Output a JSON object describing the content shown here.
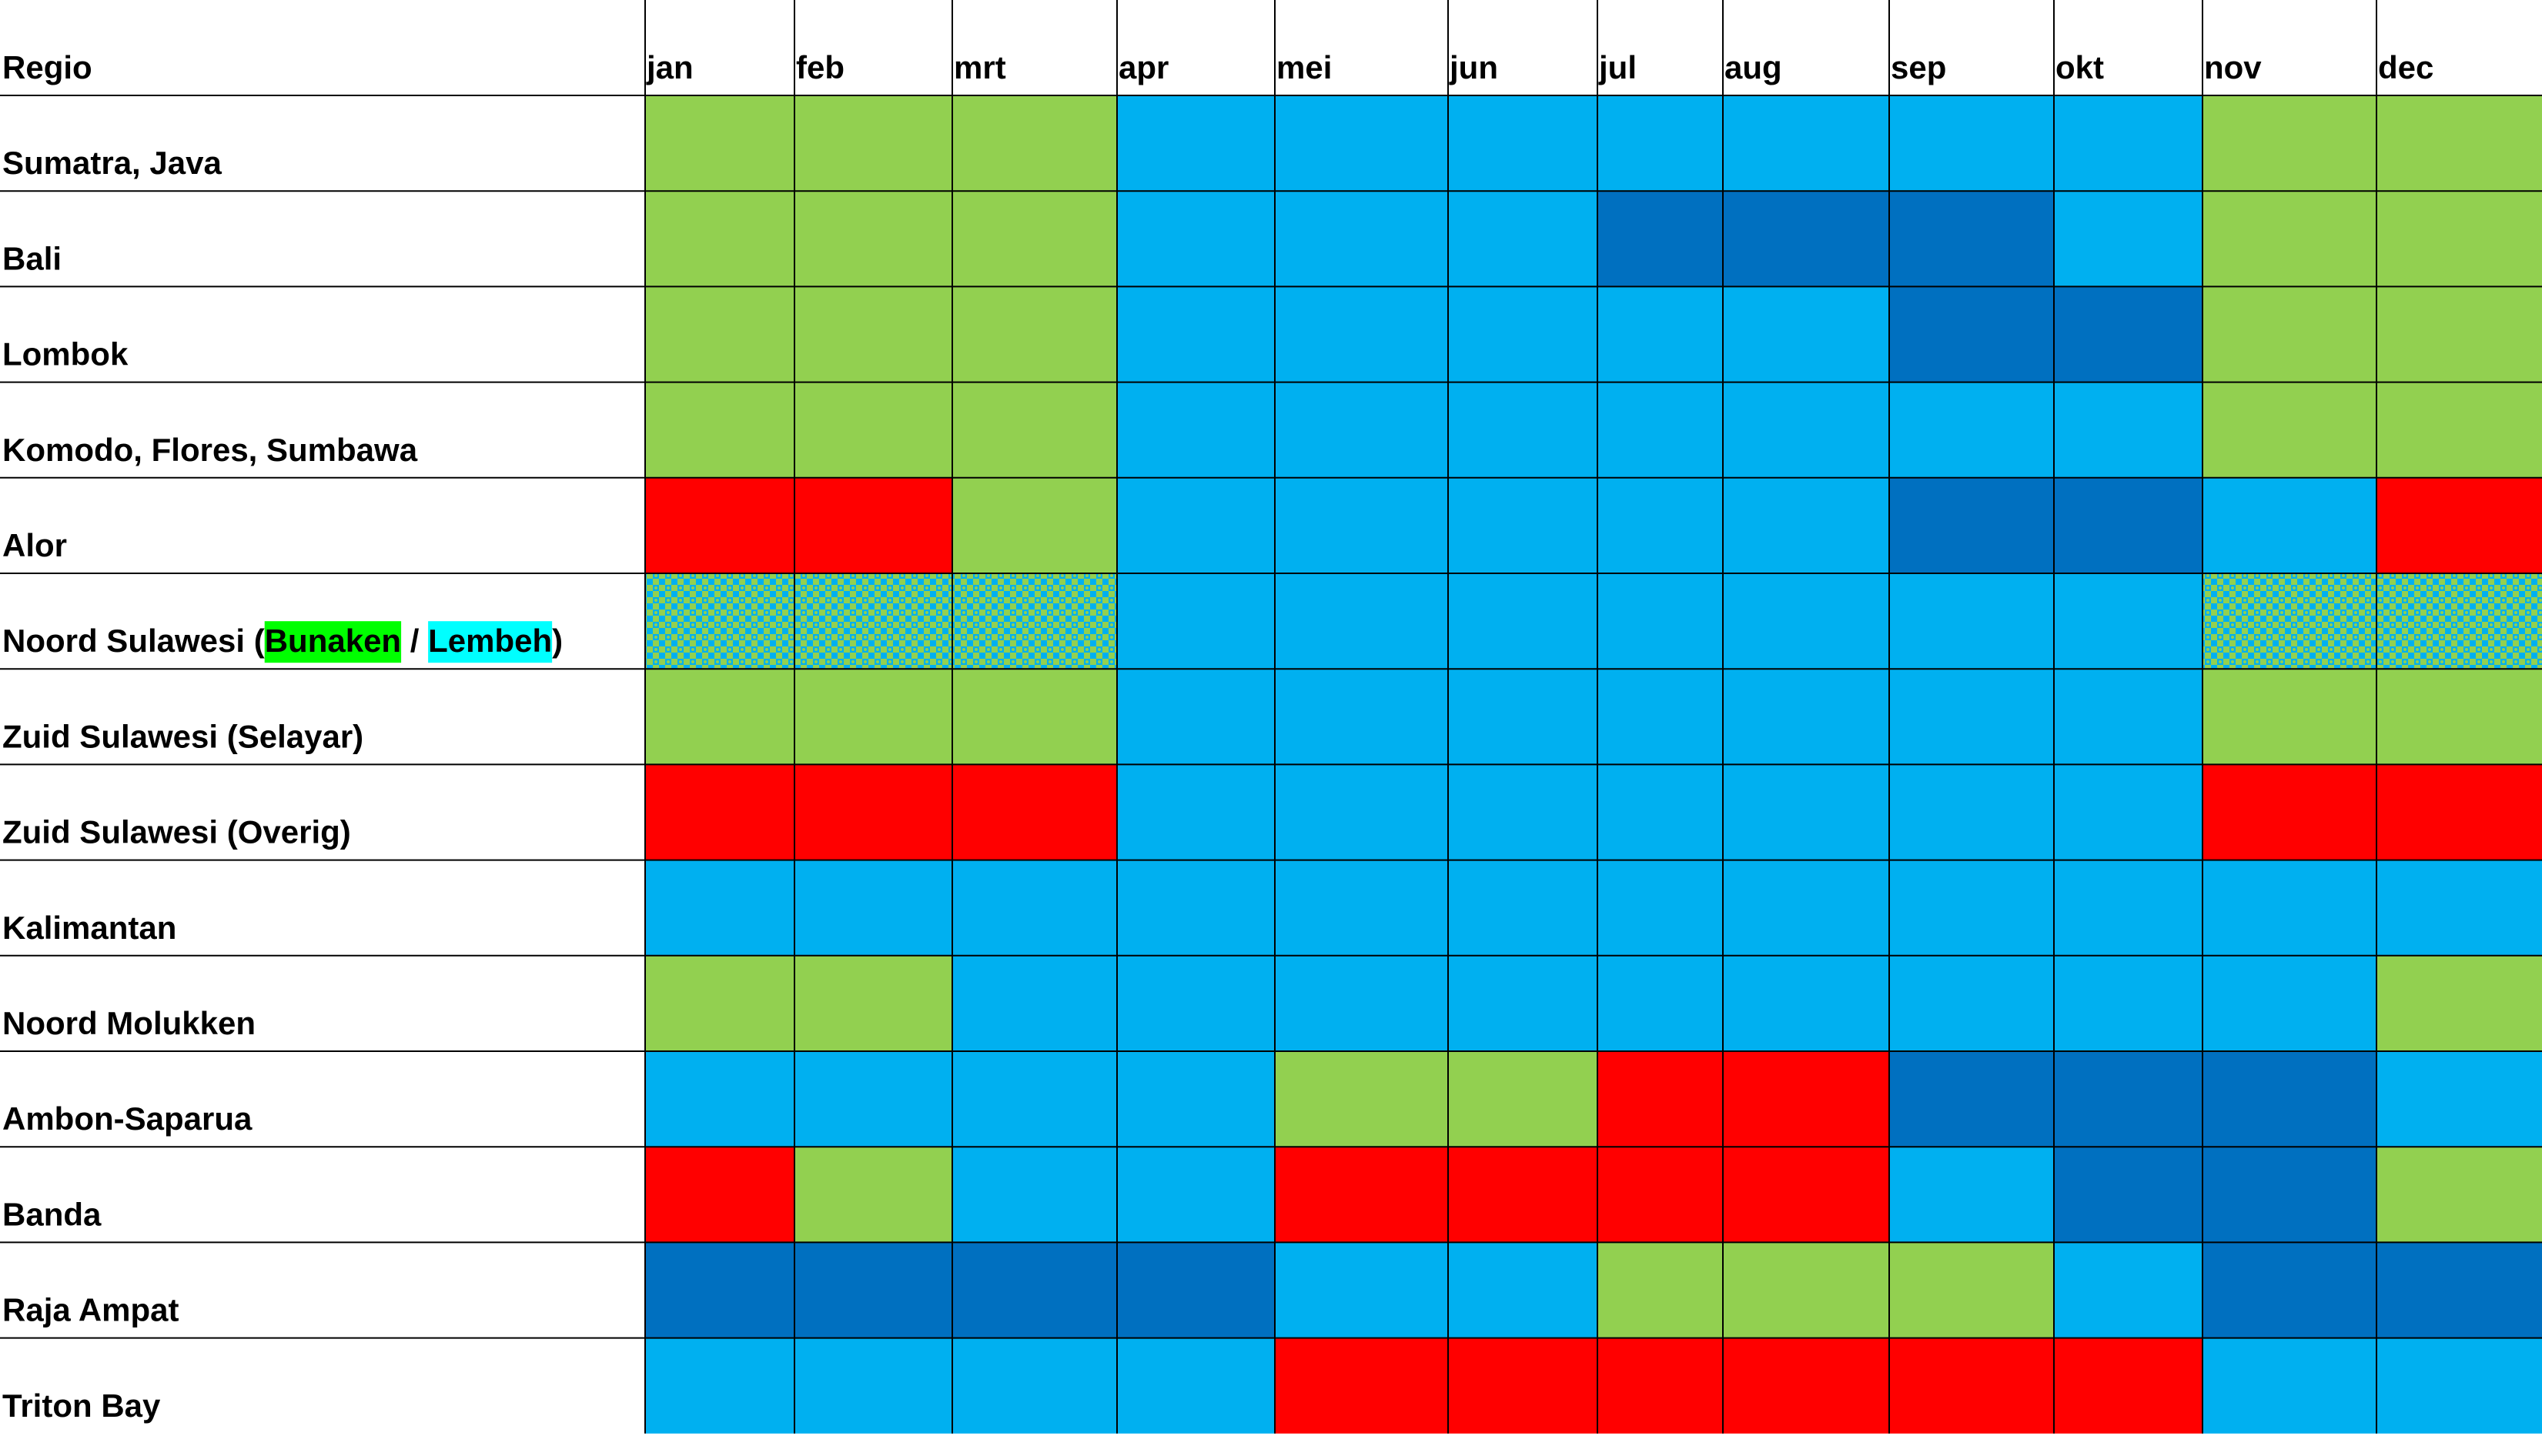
{
  "chart_data": {
    "type": "heatmap",
    "title": "",
    "header_label": "Regio",
    "months": [
      "jan",
      "feb",
      "mrt",
      "apr",
      "mei",
      "jun",
      "jul",
      "aug",
      "sep",
      "okt",
      "nov",
      "dec"
    ],
    "regions": [
      {
        "name": "Sumatra, Java",
        "values": [
          "G",
          "G",
          "G",
          "L",
          "L",
          "L",
          "L",
          "L",
          "L",
          "L",
          "G",
          "G"
        ]
      },
      {
        "name": "Bali",
        "values": [
          "G",
          "G",
          "G",
          "L",
          "L",
          "L",
          "D",
          "D",
          "D",
          "L",
          "G",
          "G"
        ]
      },
      {
        "name": "Lombok",
        "values": [
          "G",
          "G",
          "G",
          "L",
          "L",
          "L",
          "L",
          "L",
          "D",
          "D",
          "G",
          "G"
        ]
      },
      {
        "name": "Komodo, Flores, Sumbawa",
        "values": [
          "G",
          "G",
          "G",
          "L",
          "L",
          "L",
          "L",
          "L",
          "L",
          "L",
          "G",
          "G"
        ]
      },
      {
        "name": "Alor",
        "values": [
          "R",
          "R",
          "G",
          "L",
          "L",
          "L",
          "L",
          "L",
          "D",
          "D",
          "L",
          "R"
        ]
      },
      {
        "name": "Noord Sulawesi (",
        "name_parts": [
          {
            "text": "Noord Sulawesi (",
            "highlight": ""
          },
          {
            "text": "Bunaken",
            "highlight": "#00ff00"
          },
          {
            "text": " / ",
            "highlight": ""
          },
          {
            "text": "Lembeh",
            "highlight": "#00ffff"
          },
          {
            "text": ")",
            "highlight": ""
          }
        ],
        "values": [
          "P",
          "P",
          "P",
          "L",
          "L",
          "L",
          "L",
          "L",
          "L",
          "L",
          "P",
          "P"
        ]
      },
      {
        "name": "Zuid Sulawesi (Selayar)",
        "values": [
          "G",
          "G",
          "G",
          "L",
          "L",
          "L",
          "L",
          "L",
          "L",
          "L",
          "G",
          "G"
        ]
      },
      {
        "name": "Zuid Sulawesi (Overig)",
        "values": [
          "R",
          "R",
          "R",
          "L",
          "L",
          "L",
          "L",
          "L",
          "L",
          "L",
          "R",
          "R"
        ]
      },
      {
        "name": "Kalimantan",
        "values": [
          "L",
          "L",
          "L",
          "L",
          "L",
          "L",
          "L",
          "L",
          "L",
          "L",
          "L",
          "L"
        ]
      },
      {
        "name": "Noord Molukken",
        "values": [
          "G",
          "G",
          "L",
          "L",
          "L",
          "L",
          "L",
          "L",
          "L",
          "L",
          "L",
          "G"
        ]
      },
      {
        "name": "Ambon-Saparua",
        "values": [
          "L",
          "L",
          "L",
          "L",
          "G",
          "G",
          "R",
          "R",
          "D",
          "D",
          "D",
          "L"
        ]
      },
      {
        "name": "Banda",
        "values": [
          "R",
          "G",
          "L",
          "L",
          "R",
          "R",
          "R",
          "R",
          "L",
          "D",
          "D",
          "G"
        ]
      },
      {
        "name": "Raja Ampat",
        "values": [
          "D",
          "D",
          "D",
          "D",
          "L",
          "L",
          "G",
          "G",
          "G",
          "L",
          "D",
          "D"
        ]
      },
      {
        "name": "Triton Bay",
        "values": [
          "L",
          "L",
          "L",
          "L",
          "R",
          "R",
          "R",
          "R",
          "R",
          "R",
          "L",
          "L"
        ]
      }
    ],
    "category_colors": {
      "G": "#92d050",
      "L": "#00b0f0",
      "D": "#0070c0",
      "R": "#ff0000",
      "P": "#92d050"
    },
    "pattern_secondary_color": "#00b0f0",
    "legend": "none",
    "grid": true
  }
}
